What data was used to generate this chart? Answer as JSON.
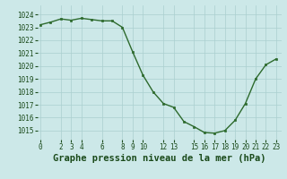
{
  "x": [
    0,
    1,
    2,
    3,
    4,
    5,
    6,
    7,
    8,
    9,
    10,
    11,
    12,
    13,
    14,
    15,
    16,
    17,
    18,
    19,
    20,
    21,
    22,
    23
  ],
  "y": [
    1023.2,
    1023.4,
    1023.65,
    1023.55,
    1023.7,
    1023.6,
    1023.5,
    1023.5,
    1023.0,
    1021.1,
    1019.3,
    1018.0,
    1017.1,
    1016.8,
    1015.7,
    1015.3,
    1014.85,
    1014.8,
    1015.0,
    1015.8,
    1017.1,
    1019.0,
    1020.1,
    1020.55
  ],
  "line_color": "#2d6a2d",
  "marker_color": "#2d6a2d",
  "bg_color": "#cce8e8",
  "grid_color": "#aacfcf",
  "xlabel": "Graphe pression niveau de la mer (hPa)",
  "xlabel_color": "#1a4a1a",
  "ylim_min": 1014.3,
  "ylim_max": 1024.7,
  "yticks": [
    1015,
    1016,
    1017,
    1018,
    1019,
    1020,
    1021,
    1022,
    1023,
    1024
  ],
  "xticks": [
    0,
    2,
    3,
    4,
    6,
    8,
    9,
    10,
    12,
    13,
    15,
    16,
    17,
    18,
    19,
    20,
    21,
    22,
    23
  ],
  "tick_fontsize": 5.5,
  "xlabel_fontsize": 7.5,
  "linewidth": 1.0,
  "markersize": 2.0
}
